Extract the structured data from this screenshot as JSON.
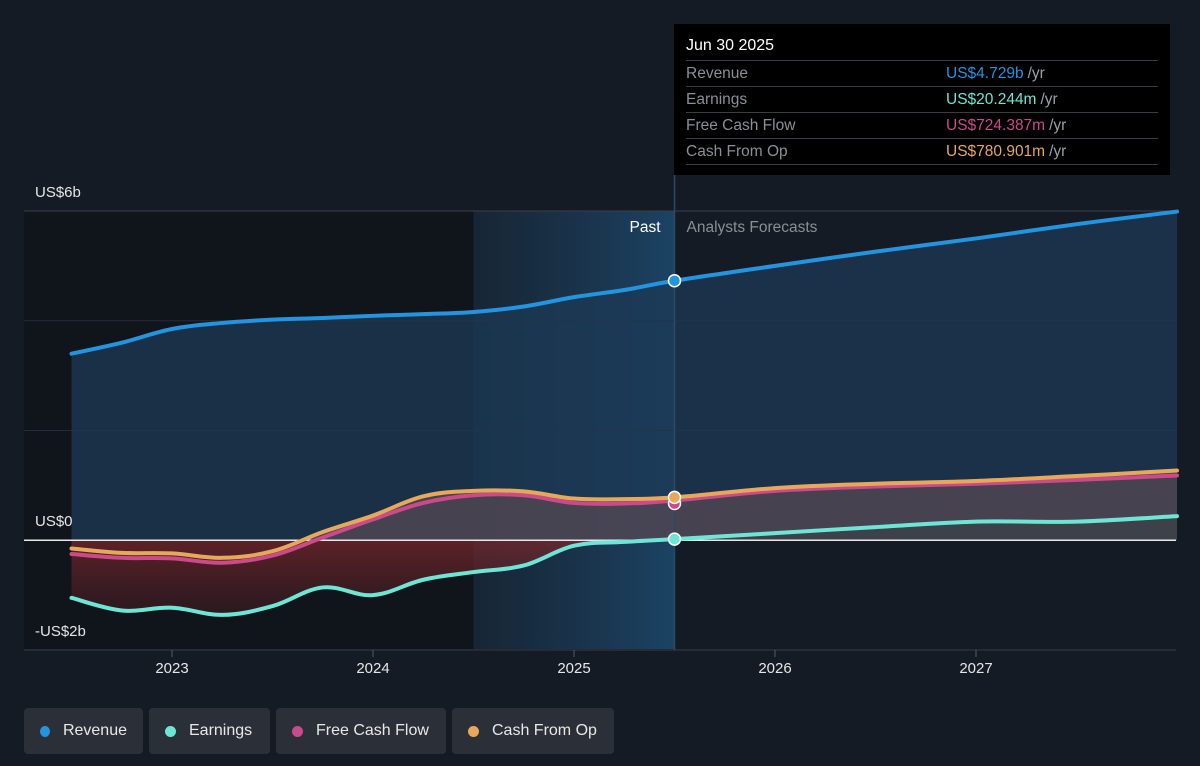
{
  "tooltip": {
    "date": "Jun 30 2025",
    "rows": [
      {
        "label": "Revenue",
        "value": "US$4.729b",
        "unit": "/yr",
        "color": "#2394df"
      },
      {
        "label": "Earnings",
        "value": "US$20.244m",
        "unit": "/yr",
        "color": "#6ee6d6"
      },
      {
        "label": "Free Cash Flow",
        "value": "US$724.387m",
        "unit": "/yr",
        "color": "#c94b8b"
      },
      {
        "label": "Cash From Op",
        "value": "US$780.901m",
        "unit": "/yr",
        "color": "#e8a85a"
      }
    ]
  },
  "labels": {
    "past": "Past",
    "forecast": "Analysts Forecasts"
  },
  "legend": [
    {
      "label": "Revenue",
      "color": "#2394df"
    },
    {
      "label": "Earnings",
      "color": "#6ee6d6"
    },
    {
      "label": "Free Cash Flow",
      "color": "#c94b8b"
    },
    {
      "label": "Cash From Op",
      "color": "#e8a85a"
    }
  ],
  "chart_data": {
    "type": "line",
    "title": "",
    "xlabel": "",
    "ylabel": "",
    "x_ticks": [
      "2023",
      "2024",
      "2025",
      "2026",
      "2027"
    ],
    "x_range": [
      2022.25,
      2028.0
    ],
    "y_ticks": [
      {
        "value": 6,
        "label": "US$6b"
      },
      {
        "value": 0,
        "label": "US$0"
      },
      {
        "value": -2,
        "label": "-US$2b"
      }
    ],
    "ylim": [
      -2,
      6
    ],
    "grid": true,
    "legend_position": "bottom-left",
    "past_end": 2025.5,
    "highlight_start": 2024.5,
    "units": "US$ billions",
    "series": [
      {
        "name": "Revenue",
        "color": "#2394df",
        "x": [
          2022.5,
          2022.75,
          2023.0,
          2023.25,
          2023.5,
          2023.75,
          2024.0,
          2024.25,
          2024.5,
          2024.75,
          2025.0,
          2025.25,
          2025.5,
          2026.0,
          2026.5,
          2027.0,
          2027.5,
          2028.0
        ],
        "values": [
          3.4,
          3.6,
          3.85,
          3.96,
          4.02,
          4.05,
          4.09,
          4.12,
          4.16,
          4.26,
          4.43,
          4.56,
          4.729,
          5.0,
          5.26,
          5.5,
          5.76,
          5.99
        ]
      },
      {
        "name": "Earnings",
        "color": "#6ee6d6",
        "x": [
          2022.5,
          2022.75,
          2023.0,
          2023.25,
          2023.5,
          2023.75,
          2024.0,
          2024.25,
          2024.5,
          2024.75,
          2025.0,
          2025.25,
          2025.5,
          2026.0,
          2026.5,
          2027.0,
          2027.5,
          2028.0
        ],
        "values": [
          -1.05,
          -1.28,
          -1.23,
          -1.36,
          -1.2,
          -0.86,
          -1.0,
          -0.72,
          -0.58,
          -0.46,
          -0.1,
          -0.03,
          0.02,
          0.13,
          0.24,
          0.34,
          0.34,
          0.44
        ]
      },
      {
        "name": "Free Cash Flow",
        "color": "#c94b8b",
        "x": [
          2022.5,
          2022.75,
          2023.0,
          2023.25,
          2023.5,
          2023.75,
          2024.0,
          2024.25,
          2024.5,
          2024.75,
          2025.0,
          2025.25,
          2025.5,
          2026.0,
          2026.5,
          2027.0,
          2027.5,
          2028.0
        ],
        "values": [
          -0.25,
          -0.32,
          -0.33,
          -0.41,
          -0.28,
          0.05,
          0.38,
          0.68,
          0.82,
          0.82,
          0.68,
          0.67,
          0.724,
          0.9,
          0.98,
          1.03,
          1.1,
          1.18
        ]
      },
      {
        "name": "Cash From Op",
        "color": "#e8a85a",
        "x": [
          2022.5,
          2022.75,
          2023.0,
          2023.25,
          2023.5,
          2023.75,
          2024.0,
          2024.25,
          2024.5,
          2024.75,
          2025.0,
          2025.25,
          2025.5,
          2026.0,
          2026.5,
          2027.0,
          2027.5,
          2028.0
        ],
        "values": [
          -0.15,
          -0.23,
          -0.24,
          -0.32,
          -0.2,
          0.15,
          0.45,
          0.8,
          0.9,
          0.89,
          0.76,
          0.75,
          0.781,
          0.95,
          1.03,
          1.08,
          1.17,
          1.27
        ]
      }
    ],
    "highlighted_point": {
      "x": 2025.5,
      "label": "Jun 30 2025"
    }
  }
}
